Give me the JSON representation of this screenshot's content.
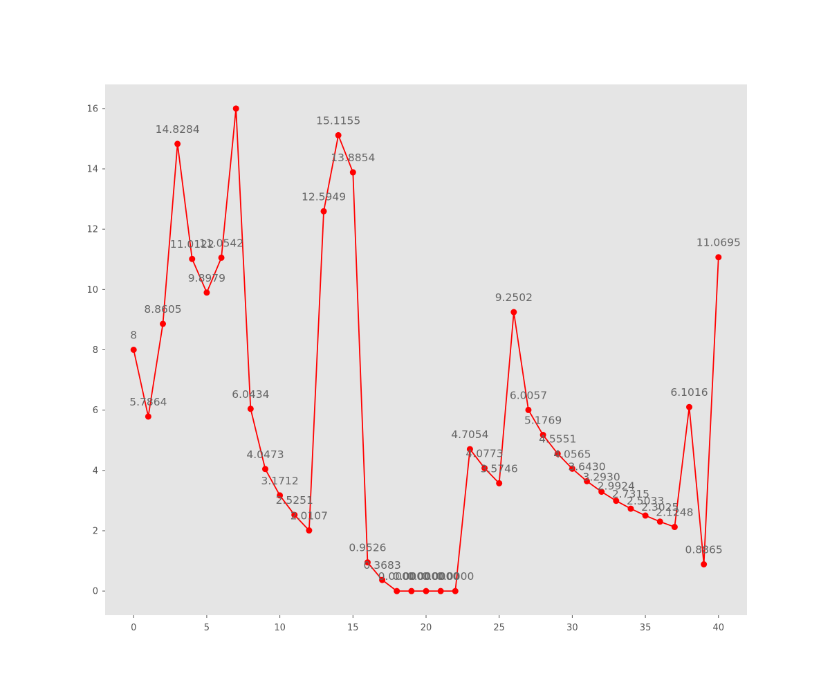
{
  "chart_data": {
    "type": "line",
    "title": "",
    "xlabel": "",
    "ylabel": "",
    "x": [
      0,
      1,
      2,
      3,
      4,
      5,
      6,
      7,
      8,
      9,
      10,
      11,
      12,
      13,
      14,
      15,
      16,
      17,
      18,
      19,
      20,
      21,
      22,
      23,
      24,
      25,
      26,
      27,
      28,
      29,
      30,
      31,
      32,
      33,
      34,
      35,
      36,
      37,
      38,
      39,
      40
    ],
    "series": [
      {
        "values": [
          8,
          5.7864,
          8.8605,
          14.8284,
          11.0122,
          9.8979,
          11.0542,
          16,
          6.0434,
          4.0473,
          3.1712,
          2.5251,
          2.0107,
          12.5949,
          15.1155,
          13.8854,
          0.9526,
          0.3683,
          0,
          0,
          0,
          0,
          0,
          4.7054,
          4.0773,
          3.5746,
          9.2502,
          6.0057,
          5.1769,
          4.5551,
          4.0565,
          3.643,
          3.293,
          2.9924,
          2.7315,
          2.5033,
          2.3025,
          2.1248,
          6.1016,
          0.8865,
          11.0695
        ],
        "labels": [
          "8",
          "5.7864",
          "8.8605",
          "14.8284",
          "11.0122",
          "9.8979",
          "11.0542",
          "",
          "6.0434",
          "4.0473",
          "3.1712",
          "2.5251",
          "2.0107",
          "12.5949",
          "15.1155",
          "13.8854",
          "0.9526",
          "0.3683",
          "0.0000",
          "0.0000",
          "0.0000",
          "0.0000",
          "0.0000",
          "4.7054",
          "4.0773",
          "3.5746",
          "9.2502",
          "6.0057",
          "5.1769",
          "4.5551",
          "4.0565",
          "3.6430",
          "3.2930",
          "2.9924",
          "2.7315",
          "2.5033",
          "2.3025",
          "2.1248",
          "6.1016",
          "0.8865",
          "11.0695"
        ],
        "color": "#ff0000"
      }
    ],
    "xlim": [
      -1.95,
      41.95
    ],
    "ylim": [
      -0.8,
      16.8
    ],
    "xticks": [
      0,
      5,
      10,
      15,
      20,
      25,
      30,
      35,
      40
    ],
    "yticks": [
      0,
      2,
      4,
      6,
      8,
      10,
      12,
      14,
      16
    ],
    "grid": false,
    "colors": {
      "plot_background": "#e5e5e5",
      "tick_label": "#555555",
      "data_label": "#666666"
    }
  }
}
